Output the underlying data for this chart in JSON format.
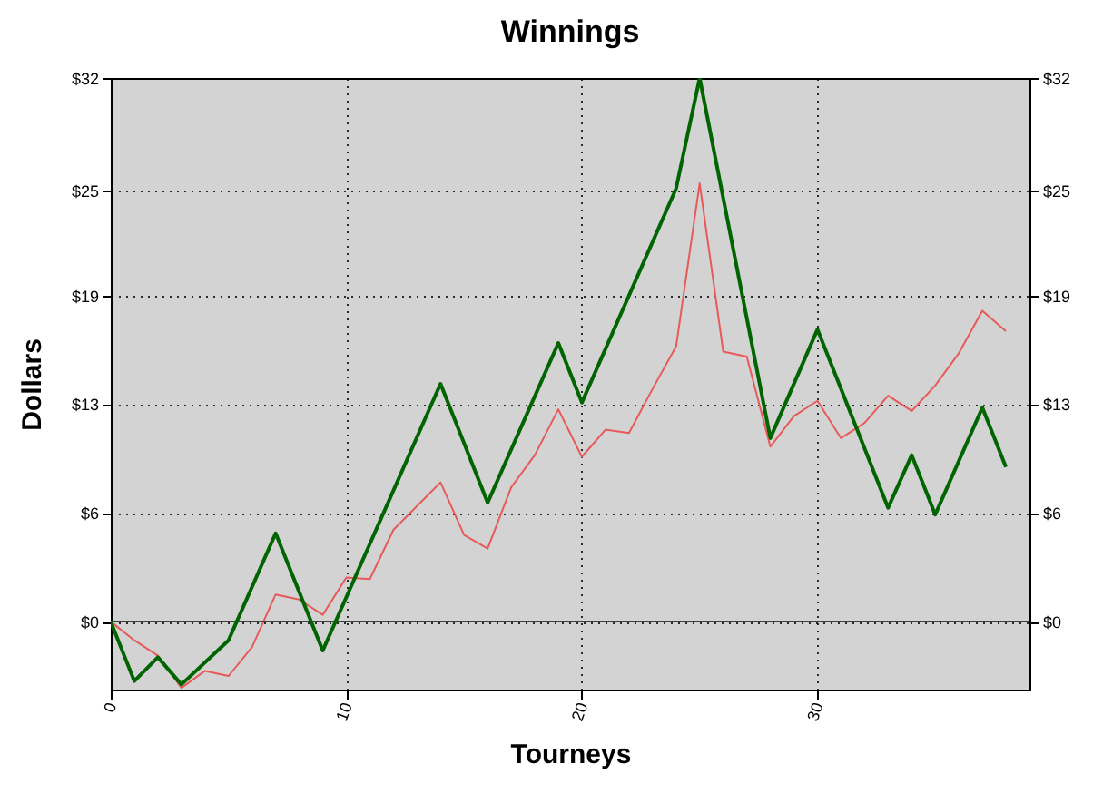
{
  "chart_data": {
    "type": "line",
    "title": "Winnings",
    "xlabel": "Tourneys",
    "ylabel": "Dollars",
    "xlim": [
      0,
      39
    ],
    "xticks": [
      0,
      10,
      20,
      30
    ],
    "ylim": [
      -4,
      32
    ],
    "yticks": [
      {
        "value": 0,
        "label": "$0"
      },
      {
        "value": 6.4,
        "label": "$6"
      },
      {
        "value": 12.8,
        "label": "$13"
      },
      {
        "value": 19.2,
        "label": "$19"
      },
      {
        "value": 25.4,
        "label": "$25"
      },
      {
        "value": 32,
        "label": "$32"
      }
    ],
    "y2lim": [
      -4,
      32
    ],
    "y2ticks": [
      {
        "value": 0,
        "label": "$0"
      },
      {
        "value": 6.4,
        "label": "$6"
      },
      {
        "value": 12.8,
        "label": "$13"
      },
      {
        "value": 19.2,
        "label": "$19"
      },
      {
        "value": 25.4,
        "label": "$25"
      },
      {
        "value": 32,
        "label": "$32"
      }
    ],
    "grid": true,
    "marker": "none",
    "line_style": "solid",
    "ref_lines": [
      {
        "axis": "y",
        "value": 0,
        "color": "#404040"
      }
    ],
    "series": [
      {
        "color": "#e85a5a",
        "x": [
          0,
          1,
          2,
          3,
          4,
          5,
          6,
          7,
          8,
          9,
          10,
          11,
          12,
          13,
          14,
          15,
          16,
          17,
          18,
          19,
          20,
          21,
          22,
          23,
          24,
          25,
          26,
          27,
          28,
          29,
          30,
          31,
          32,
          33,
          34,
          35,
          36,
          37,
          38
        ],
        "values": [
          0,
          -1.1,
          -2,
          -3.9,
          -2.9,
          -3.2,
          -1.5,
          1.6,
          1.3,
          0.4,
          2.6,
          2.5,
          5.4,
          6.8,
          8.2,
          5.1,
          4.3,
          7.9,
          9.8,
          12.5,
          9.7,
          11.3,
          11.1,
          13.7,
          16.2,
          25.8,
          15.9,
          15.6,
          10.3,
          12.1,
          13,
          10.8,
          11.7,
          13.3,
          12.4,
          13.9,
          15.8,
          18.3,
          17.1
        ]
      },
      {
        "color": "#006400",
        "x": [
          0,
          1,
          2,
          3,
          5,
          7,
          9,
          14,
          16,
          19,
          20,
          24,
          25,
          28,
          30,
          33,
          34,
          35,
          37,
          38
        ],
        "values": [
          0,
          -3.5,
          -2.1,
          -3.7,
          -1.1,
          5.2,
          -1.7,
          14,
          7,
          16.4,
          12.9,
          25.5,
          32,
          10.8,
          17.2,
          6.7,
          9.8,
          6.3,
          12.6,
          9.1
        ]
      }
    ]
  }
}
